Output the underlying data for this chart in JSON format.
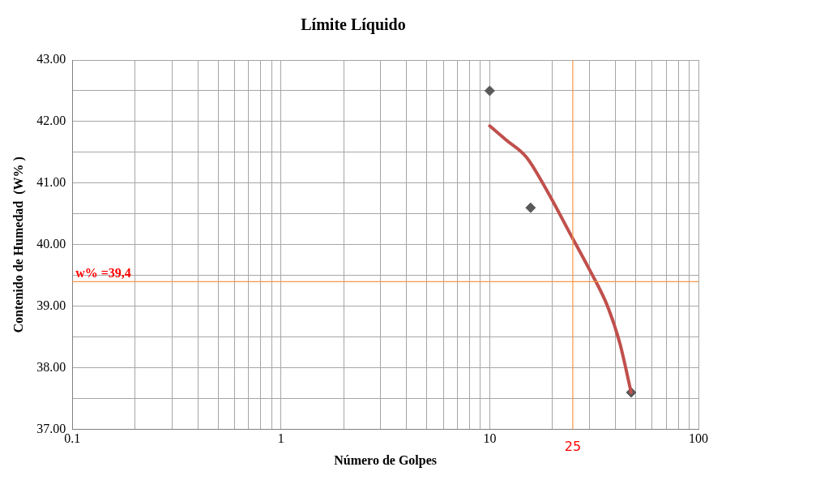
{
  "chart_data": {
    "type": "scatter",
    "title": "Límite Líquido",
    "xlabel": "Número de Golpes",
    "ylabel": "Contenido de Humedad  (W% )",
    "log": "x",
    "grid": true,
    "marker": "diamond",
    "legend": false,
    "xlim": [
      0.1,
      100
    ],
    "xticks": [
      {
        "value": 0.1,
        "label": "0.1"
      },
      {
        "value": 0.2,
        "label": null
      },
      {
        "value": 0.3,
        "label": null
      },
      {
        "value": 0.4,
        "label": null
      },
      {
        "value": 0.5,
        "label": null
      },
      {
        "value": 0.6,
        "label": null
      },
      {
        "value": 0.7,
        "label": null
      },
      {
        "value": 0.8,
        "label": null
      },
      {
        "value": 0.9,
        "label": null
      },
      1,
      {
        "value": 2,
        "label": null
      },
      {
        "value": 3,
        "label": null
      },
      {
        "value": 4,
        "label": null
      },
      {
        "value": 5,
        "label": null
      },
      {
        "value": 6,
        "label": null
      },
      {
        "value": 7,
        "label": null
      },
      {
        "value": 8,
        "label": null
      },
      {
        "value": 9,
        "label": null
      },
      10,
      {
        "value": 20,
        "label": null
      },
      {
        "value": 30,
        "label": null
      },
      {
        "value": 40,
        "label": null
      },
      {
        "value": 50,
        "label": null
      },
      {
        "value": 60,
        "label": null
      },
      {
        "value": 70,
        "label": null
      },
      {
        "value": 80,
        "label": null
      },
      {
        "value": 90,
        "label": null
      },
      100
    ],
    "ylim": [
      37,
      43
    ],
    "yticks": [
      {
        "value": 37,
        "label": "37.00"
      },
      {
        "value": 37.5,
        "label": null
      },
      {
        "value": 38,
        "label": "38.00"
      },
      {
        "value": 38.5,
        "label": null
      },
      {
        "value": 39,
        "label": "39.00"
      },
      {
        "value": 39.5,
        "label": null
      },
      {
        "value": 40,
        "label": "40.00"
      },
      {
        "value": 40.5,
        "label": null
      },
      {
        "value": 41,
        "label": "41.00"
      },
      {
        "value": 41.5,
        "label": null
      },
      {
        "value": 42,
        "label": "42.00"
      },
      {
        "value": 42.5,
        "label": null
      },
      {
        "value": 43,
        "label": "43.00"
      }
    ],
    "series": [
      {
        "color": "#595959",
        "x": [
          10,
          15.7,
          47.6
        ],
        "values": [
          42.5,
          40.6,
          37.6
        ]
      },
      {
        "type": "line",
        "color": "#c0504d",
        "marker": "none",
        "x": [
          10,
          12,
          15,
          19,
          24,
          30,
          36.7,
          42,
          47.6
        ],
        "values": [
          41.93,
          41.7,
          41.42,
          40.85,
          40.21,
          39.6,
          39.0,
          38.4,
          37.6
        ]
      }
    ],
    "ref_lines": [
      {
        "axis": "x",
        "value": 25,
        "label": "25",
        "color": "#f79646"
      },
      {
        "axis": "y",
        "value": 39.4,
        "label": "w% =39,4",
        "color": "#f79646"
      }
    ]
  }
}
